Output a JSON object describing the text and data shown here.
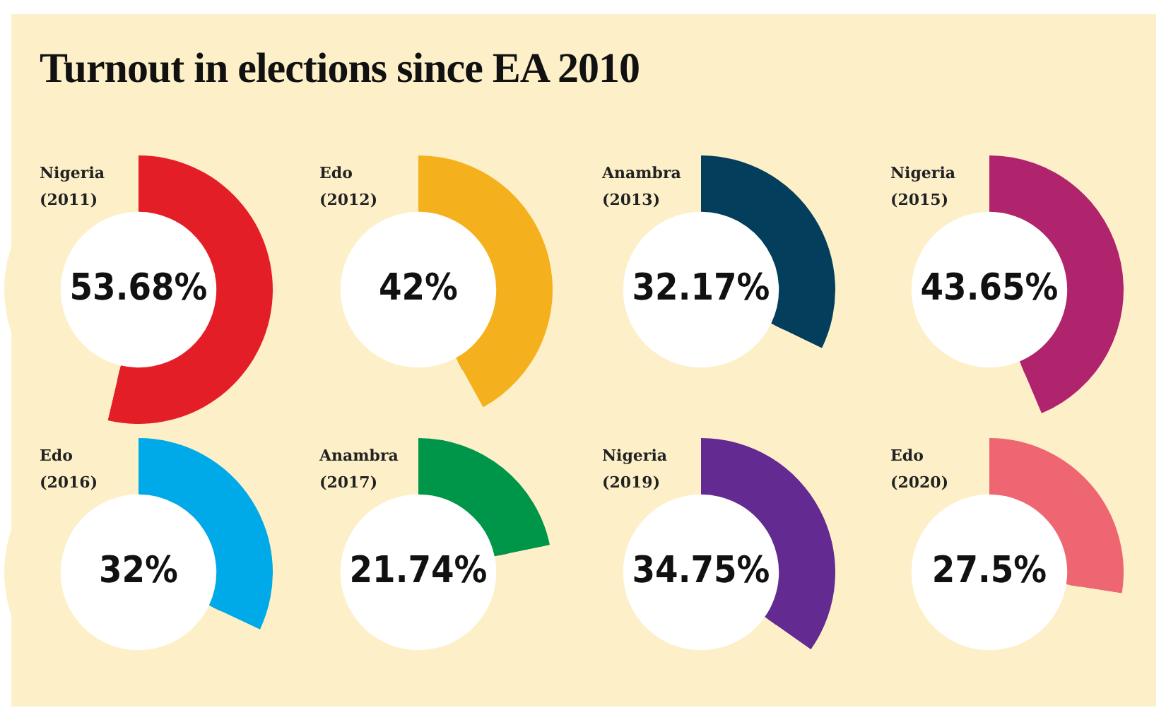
{
  "chart_data": [
    {
      "type": "other",
      "title": "Turnout in elections since EA 2010"
    },
    {
      "type": "donut",
      "title": "Nigeria",
      "subtitle": "(2011)",
      "categories": [
        null,
        null
      ],
      "values": [
        53.68,
        46.32
      ],
      "colors": [
        "#e41e26",
        "#fdf0c9"
      ],
      "value_labels": [
        "53.68%",
        null
      ]
    },
    {
      "type": "donut",
      "title": "Edo",
      "subtitle": "(2012)",
      "categories": [
        null,
        null
      ],
      "values": [
        42,
        58
      ],
      "colors": [
        "#f5b11d",
        "#fdf0c9"
      ],
      "value_labels": [
        "42%",
        null
      ]
    },
    {
      "type": "donut",
      "title": "Anambra",
      "subtitle": "(2013)",
      "categories": [
        null,
        null
      ],
      "values": [
        32.17,
        67.83
      ],
      "colors": [
        "#033f5c",
        "#fdf0c9"
      ],
      "value_labels": [
        "32.17%",
        null
      ]
    },
    {
      "type": "donut",
      "title": "Nigeria",
      "subtitle": "(2015)",
      "categories": [
        null,
        null
      ],
      "values": [
        43.65,
        56.35
      ],
      "colors": [
        "#b0246e",
        "#fdf0c9"
      ],
      "value_labels": [
        "43.65%",
        null
      ]
    },
    {
      "type": "donut",
      "title": "Edo",
      "subtitle": "(2016)",
      "categories": [
        null,
        null
      ],
      "values": [
        32,
        68
      ],
      "colors": [
        "#00a9e8",
        "#fdf0c9"
      ],
      "value_labels": [
        "32%",
        null
      ]
    },
    {
      "type": "donut",
      "title": "Anambra",
      "subtitle": "(2017)",
      "categories": [
        null,
        null
      ],
      "values": [
        21.74,
        78.26
      ],
      "colors": [
        "#00964a",
        "#fdf0c9"
      ],
      "value_labels": [
        "21.74%",
        null
      ]
    },
    {
      "type": "donut",
      "title": "Nigeria",
      "subtitle": "(2019)",
      "categories": [
        null,
        null
      ],
      "values": [
        34.75,
        65.25
      ],
      "colors": [
        "#632a91",
        "#fdf0c9"
      ],
      "value_labels": [
        "34.75%",
        null
      ]
    },
    {
      "type": "donut",
      "title": "Edo",
      "subtitle": "(2020)",
      "categories": [
        null,
        null
      ],
      "values": [
        27.5,
        72.5
      ],
      "colors": [
        "#ee6671",
        "#fdf0c9"
      ],
      "value_labels": [
        "27.5%",
        null
      ]
    }
  ]
}
